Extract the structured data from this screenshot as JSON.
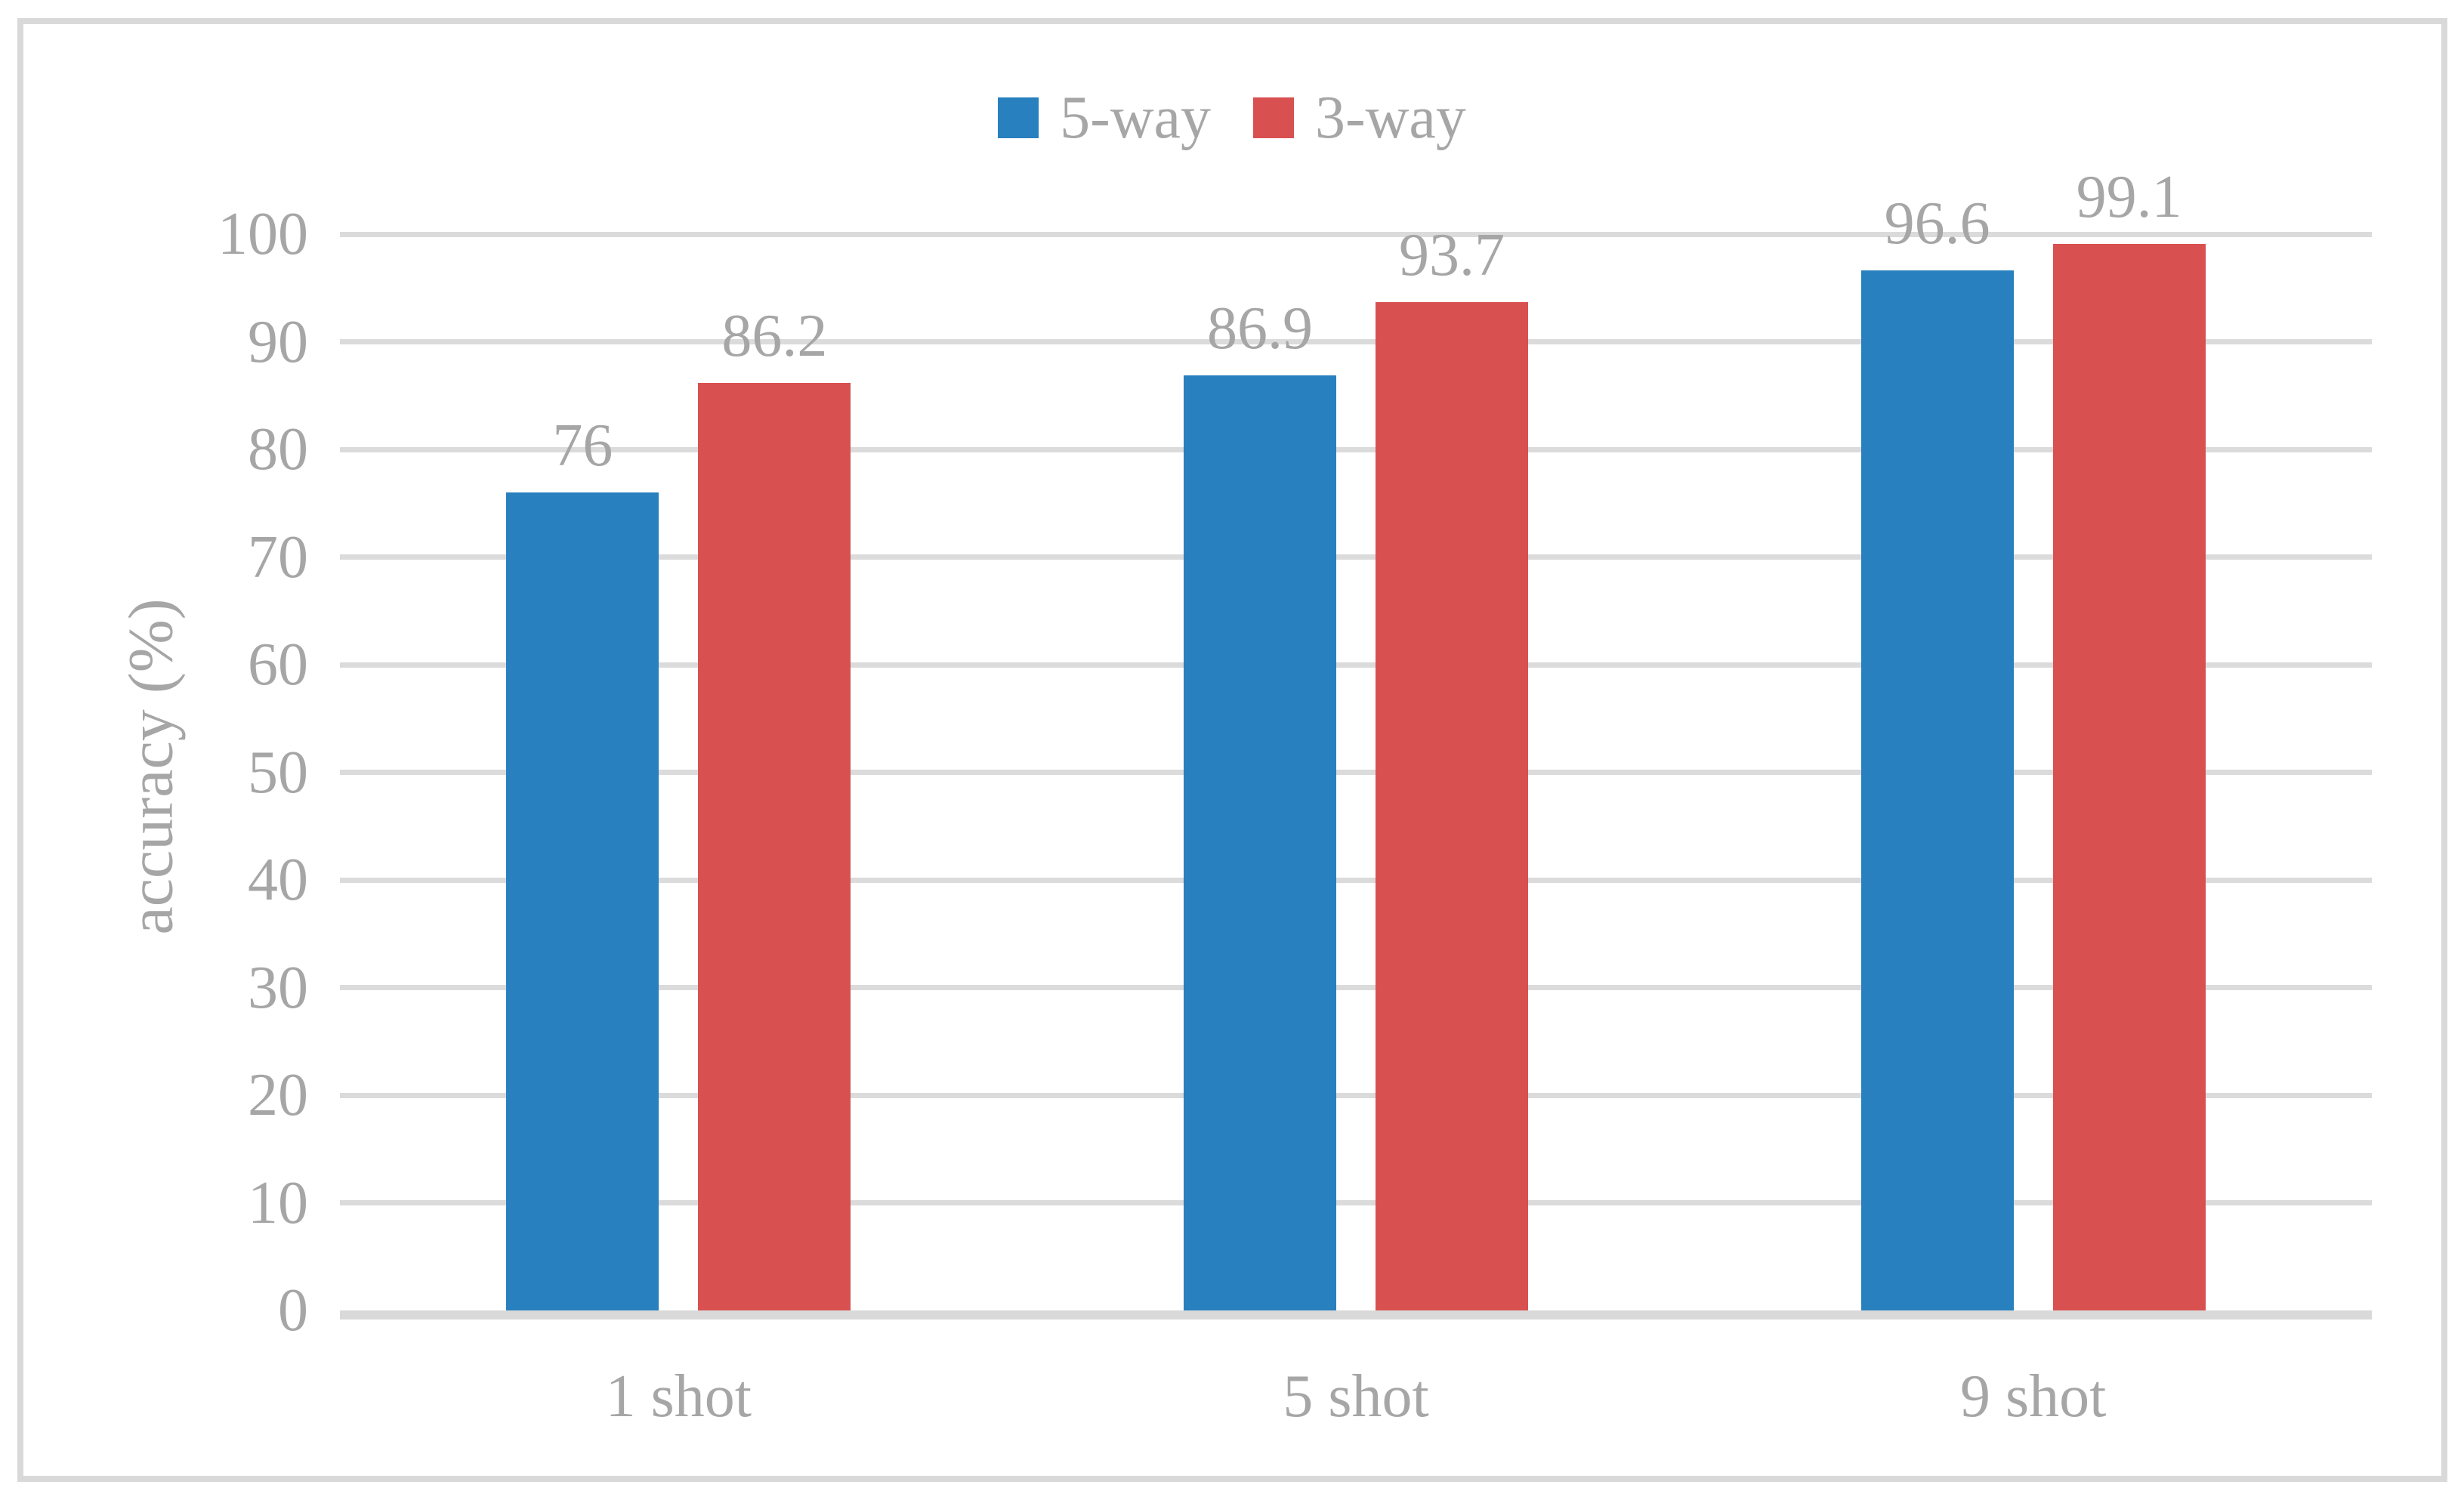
{
  "figure": {
    "background_color": "#FFFFFF",
    "frame_border_color": "#D9D9D9",
    "text_color": "#A6A6A6",
    "gridline_color": "#DBDBDB"
  },
  "chart_data": {
    "type": "bar",
    "title": "",
    "categories": [
      "1 shot",
      "5 shot",
      "9 shot"
    ],
    "series": [
      {
        "name": "5-way",
        "color": "#2880BE",
        "values": [
          76,
          86.9,
          96.6
        ],
        "value_labels": [
          "76",
          "86.9",
          "96.6"
        ]
      },
      {
        "name": "3-way",
        "color": "#D95050",
        "values": [
          86.2,
          93.7,
          99.1
        ],
        "value_labels": [
          "86.2",
          "93.7",
          "99.1"
        ]
      }
    ],
    "xlabel": "",
    "ylabel": "accuracy (%)",
    "ylim": [
      0,
      100
    ],
    "yticks": [
      0,
      10,
      20,
      30,
      40,
      50,
      60,
      70,
      80,
      90,
      100
    ],
    "grid": true,
    "legend_position": "top-center",
    "data_labels_shown": true
  }
}
